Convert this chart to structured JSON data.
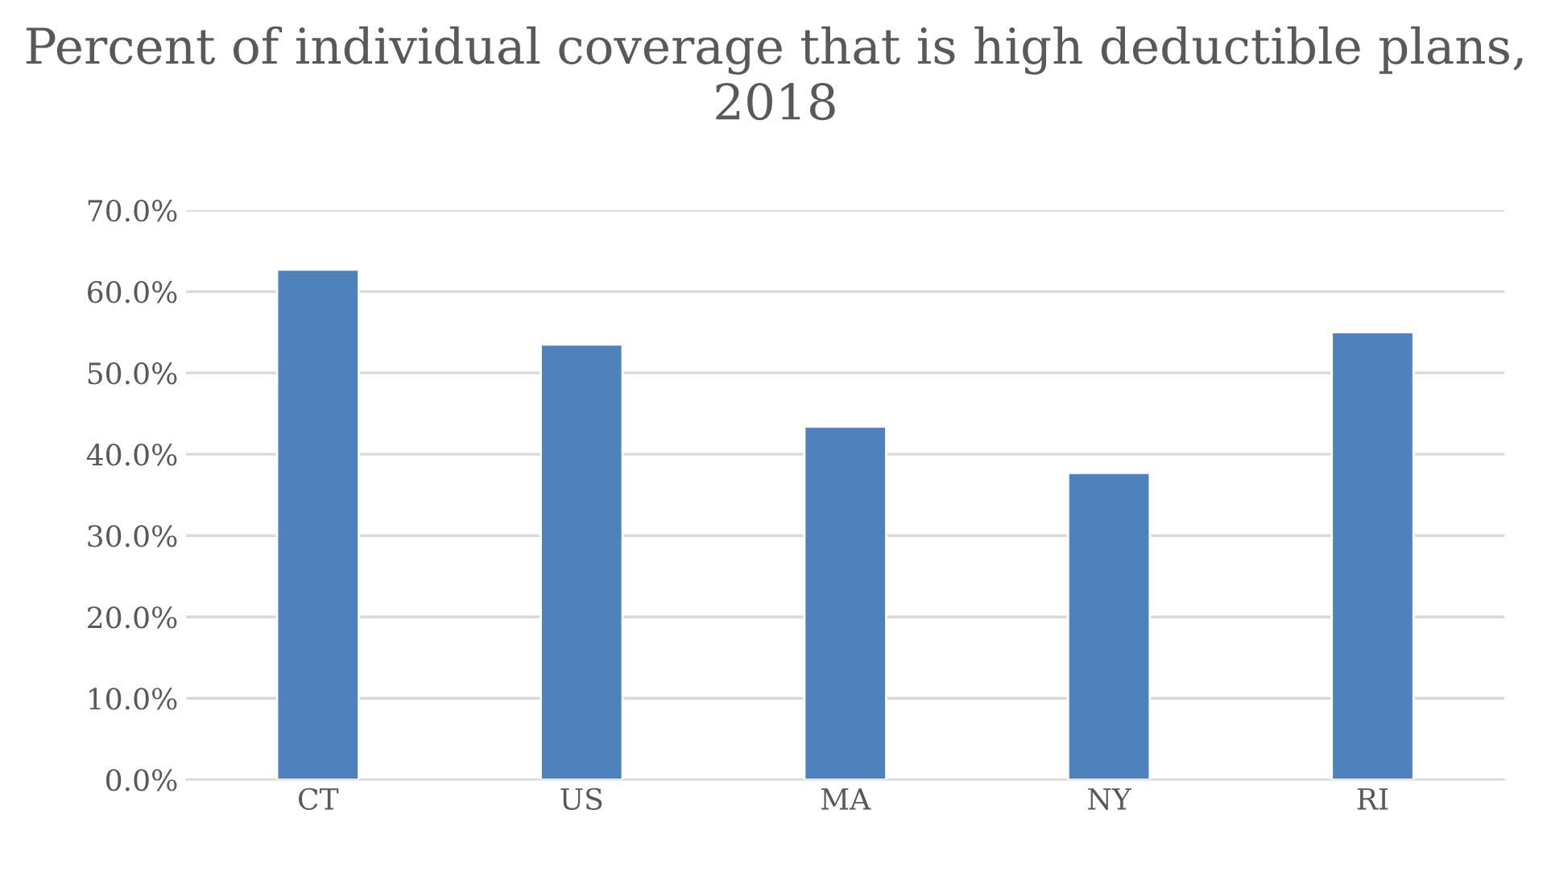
{
  "chart_data": {
    "type": "bar",
    "title": "Percent of individual coverage that is high deductible plans, 2018",
    "categories": [
      "CT",
      "US",
      "MA",
      "NY",
      "RI"
    ],
    "values": [
      62.7,
      53.5,
      43.4,
      37.7,
      55.0
    ],
    "color": "#4f81bd",
    "ylim": [
      0,
      70
    ],
    "yticks": [
      {
        "value": 0,
        "label": "0.0%"
      },
      {
        "value": 10,
        "label": "10.0%"
      },
      {
        "value": 20,
        "label": "20.0%"
      },
      {
        "value": 30,
        "label": "30.0%"
      },
      {
        "value": 40,
        "label": "40.0%"
      },
      {
        "value": 50,
        "label": "50.0%"
      },
      {
        "value": 60,
        "label": "60.0%"
      },
      {
        "value": 70,
        "label": "70.0%"
      }
    ],
    "grid": "y",
    "legend": false
  }
}
